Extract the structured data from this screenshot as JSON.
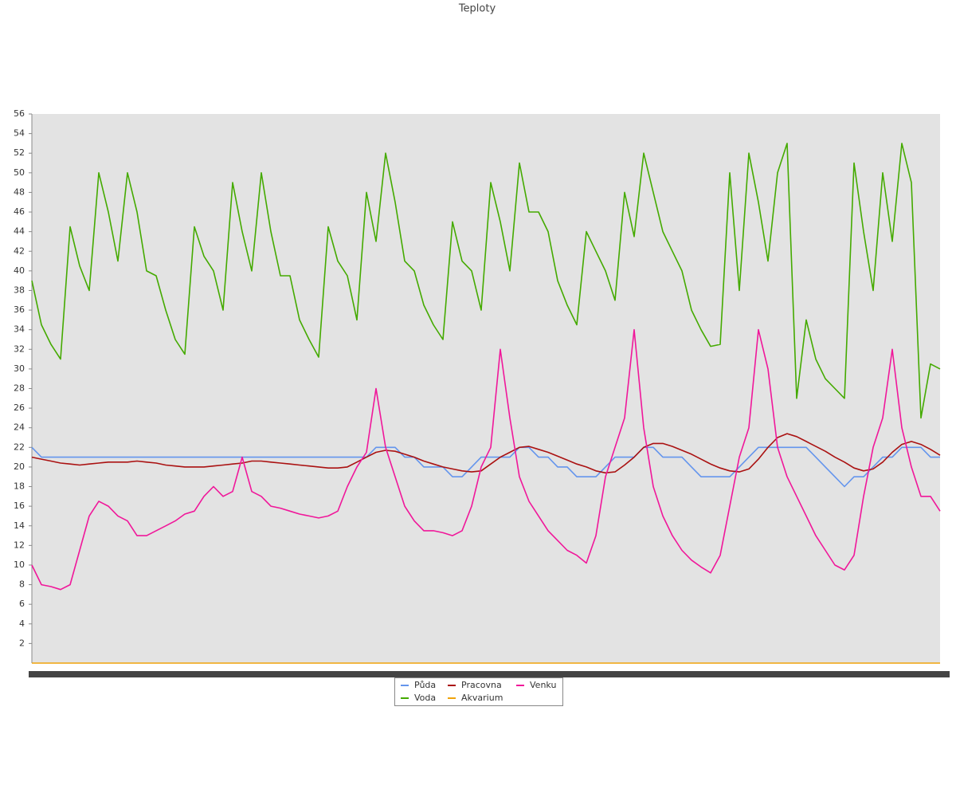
{
  "chart_data": {
    "type": "line",
    "title": "Teploty",
    "categories": [
      null,
      null,
      null,
      null,
      null,
      null,
      null,
      null,
      null,
      null,
      null,
      null,
      null,
      null,
      null,
      null,
      null,
      null,
      null,
      null,
      null,
      null,
      null,
      null,
      null,
      null,
      null,
      null,
      null,
      null,
      null,
      null,
      null,
      null,
      null,
      null,
      null,
      null,
      null,
      null,
      null,
      null,
      null,
      null,
      null,
      null,
      null,
      null,
      null,
      null,
      null,
      null,
      null,
      null,
      null,
      null,
      null,
      null,
      null,
      null,
      null,
      null,
      null,
      null,
      null,
      null,
      null,
      null,
      null,
      null,
      null,
      null,
      null,
      null,
      null,
      null,
      null,
      null,
      null,
      null,
      null,
      null,
      null,
      null,
      null,
      null,
      null,
      null,
      null,
      null,
      null,
      null,
      null,
      null,
      null,
      null
    ],
    "ylim": [
      0,
      56
    ],
    "yticks": [
      2,
      4,
      6,
      8,
      10,
      12,
      14,
      16,
      18,
      20,
      22,
      24,
      26,
      28,
      30,
      32,
      34,
      36,
      38,
      40,
      42,
      44,
      46,
      48,
      50,
      52,
      54,
      56
    ],
    "series": [
      {
        "name": "Půda",
        "color": "#6495ed",
        "values": [
          22,
          21,
          21,
          21,
          21,
          21,
          21,
          21,
          21,
          21,
          21,
          21,
          21,
          21,
          21,
          21,
          21,
          21,
          21,
          21,
          21,
          21,
          21,
          21,
          21,
          21,
          21,
          21,
          21,
          21,
          21,
          21,
          21,
          21,
          21,
          21,
          22,
          22,
          22,
          21,
          21,
          20,
          20,
          20,
          19,
          19,
          20,
          21,
          21,
          21,
          21,
          22,
          22,
          21,
          21,
          20,
          20,
          19,
          19,
          19,
          20,
          21,
          21,
          21,
          22,
          22,
          21,
          21,
          21,
          20,
          19,
          19,
          19,
          19,
          20,
          21,
          22,
          22,
          22,
          22,
          22,
          22,
          21,
          20,
          19,
          18,
          19,
          19,
          20,
          21,
          21,
          22,
          22,
          22,
          21,
          21
        ]
      },
      {
        "name": "Voda",
        "color": "#44aa00",
        "values": [
          39,
          34.5,
          32.5,
          31,
          44.5,
          40.5,
          38,
          50,
          46,
          41,
          50,
          46,
          40,
          39.5,
          36,
          33,
          31.5,
          44.5,
          41.5,
          40,
          36,
          49,
          44,
          40,
          50,
          44,
          39.5,
          39.5,
          35,
          33,
          31.2,
          44.5,
          41,
          39.5,
          35,
          48,
          43,
          52,
          47,
          41,
          40,
          36.5,
          34.5,
          33,
          45,
          41,
          40,
          36,
          49,
          45,
          40,
          51,
          46,
          46,
          44,
          39,
          36.5,
          34.5,
          44,
          42,
          40,
          37,
          48,
          43.5,
          52,
          48,
          44,
          42,
          40,
          36,
          34,
          32.3,
          32.5,
          50,
          38,
          52,
          47,
          41,
          50,
          53,
          27,
          35,
          31,
          29,
          28,
          27,
          51,
          44,
          38,
          50,
          43,
          53,
          49,
          25,
          30.5,
          30
        ]
      },
      {
        "name": "Pracovna",
        "color": "#aa1111",
        "values": [
          21,
          20.8,
          20.6,
          20.4,
          20.3,
          20.2,
          20.3,
          20.4,
          20.5,
          20.5,
          20.5,
          20.6,
          20.5,
          20.4,
          20.2,
          20.1,
          20,
          20,
          20,
          20.1,
          20.2,
          20.3,
          20.4,
          20.6,
          20.6,
          20.5,
          20.4,
          20.3,
          20.2,
          20.1,
          20,
          19.9,
          19.9,
          20,
          20.5,
          21,
          21.5,
          21.7,
          21.6,
          21.3,
          21,
          20.6,
          20.3,
          20,
          19.8,
          19.6,
          19.5,
          19.6,
          20.3,
          21,
          21.5,
          22,
          22.1,
          21.8,
          21.5,
          21.1,
          20.7,
          20.3,
          20,
          19.6,
          19.4,
          19.5,
          20.2,
          21,
          22,
          22.4,
          22.4,
          22.1,
          21.7,
          21.3,
          20.8,
          20.3,
          19.9,
          19.6,
          19.5,
          19.8,
          20.8,
          22,
          23,
          23.4,
          23.1,
          22.6,
          22.1,
          21.6,
          21,
          20.5,
          19.9,
          19.6,
          19.8,
          20.5,
          21.5,
          22.3,
          22.6,
          22.3,
          21.8,
          21.2
        ]
      },
      {
        "name": "Akvarium",
        "color": "#f0a30a",
        "values": [
          0,
          0,
          0,
          0,
          0,
          0,
          0,
          0,
          0,
          0,
          0,
          0,
          0,
          0,
          0,
          0,
          0,
          0,
          0,
          0,
          0,
          0,
          0,
          0,
          0,
          0,
          0,
          0,
          0,
          0,
          0,
          0,
          0,
          0,
          0,
          0,
          0,
          0,
          0,
          0,
          0,
          0,
          0,
          0,
          0,
          0,
          0,
          0,
          0,
          0,
          0,
          0,
          0,
          0,
          0,
          0,
          0,
          0,
          0,
          0,
          0,
          0,
          0,
          0,
          0,
          0,
          0,
          0,
          0,
          0,
          0,
          0,
          0,
          0,
          0,
          0,
          0,
          0,
          0,
          0,
          0,
          0,
          0,
          0,
          0,
          0,
          0,
          0,
          0,
          0,
          0,
          0,
          0,
          0,
          0,
          0
        ]
      },
      {
        "name": "Venku",
        "color": "#f0179a",
        "values": [
          10,
          8,
          7.8,
          7.5,
          8,
          11.5,
          15,
          16.5,
          16,
          15,
          14.5,
          13,
          13,
          13.5,
          14,
          14.5,
          15.2,
          15.5,
          17,
          18,
          17,
          17.5,
          21,
          17.5,
          17,
          16,
          15.8,
          15.5,
          15.2,
          15,
          14.8,
          15,
          15.5,
          18,
          20,
          21.5,
          28,
          22,
          19,
          16,
          14.5,
          13.5,
          13.5,
          13.3,
          13,
          13.5,
          16,
          20,
          22,
          32,
          25,
          19,
          16.5,
          15,
          13.5,
          12.5,
          11.5,
          11,
          10.2,
          13,
          19,
          22,
          25,
          34,
          24,
          18,
          15,
          13,
          11.5,
          10.5,
          9.8,
          9.2,
          11,
          16,
          21,
          24,
          34,
          30,
          22,
          19,
          17,
          15,
          13,
          11.5,
          10,
          9.5,
          11,
          17,
          22,
          25,
          32,
          24,
          20,
          17,
          17,
          15.5
        ]
      }
    ]
  }
}
